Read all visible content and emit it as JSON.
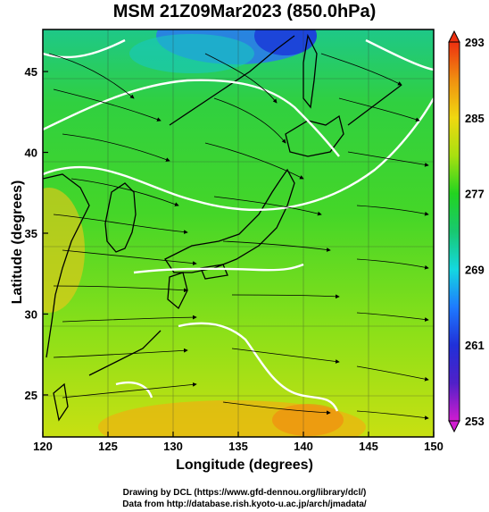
{
  "title": "MSM 21Z09Mar2023 (850.0hPa)",
  "x_axis": {
    "label": "Longitude (degrees)",
    "ticks": [
      {
        "value": 120,
        "label": "120"
      },
      {
        "value": 125,
        "label": "125"
      },
      {
        "value": 130,
        "label": "130"
      },
      {
        "value": 135,
        "label": "135"
      },
      {
        "value": 140,
        "label": "140"
      },
      {
        "value": 145,
        "label": "145"
      },
      {
        "value": 150,
        "label": "150"
      }
    ],
    "range": [
      120,
      150
    ]
  },
  "y_axis": {
    "label": "Latitude  (degrees)",
    "ticks": [
      {
        "value": 25,
        "label": "25"
      },
      {
        "value": 30,
        "label": "30"
      },
      {
        "value": 35,
        "label": "35"
      },
      {
        "value": 40,
        "label": "40"
      },
      {
        "value": 45,
        "label": "45"
      }
    ],
    "range": [
      22.4,
      47.6
    ]
  },
  "colorbar": {
    "range": [
      253,
      293
    ],
    "labels": [
      "293",
      "285",
      "277",
      "269",
      "261",
      "253"
    ],
    "colors": [
      "#d01cd0",
      "#2020c8",
      "#1e7aff",
      "#14d8e0",
      "#18c870",
      "#22d420",
      "#a8e010",
      "#f0d810",
      "#f09010",
      "#ee3010"
    ]
  },
  "credits": {
    "line1": "Drawing by DCL (https://www.gfd-dennou.org/library/dcl/)",
    "line2": "Data from http://database.rish.kyoto-u.ac.jp/arch/jmadata/"
  }
}
